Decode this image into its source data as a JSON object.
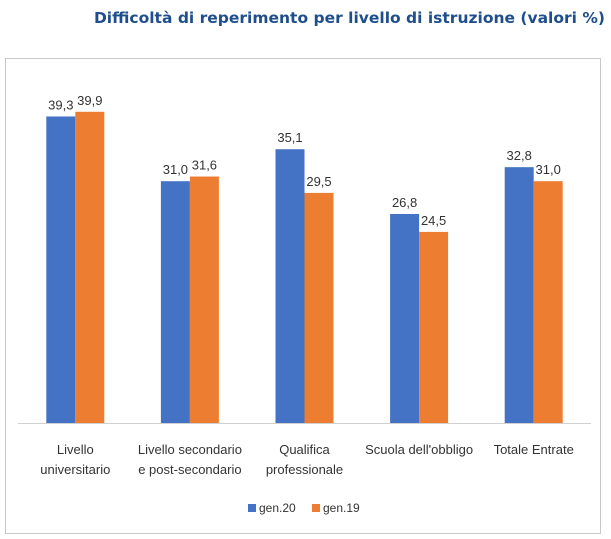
{
  "chart_data": {
    "type": "bar",
    "title": "Difficoltà di reperimento per livello di istruzione (valori %)",
    "categories": [
      [
        "Livello",
        "universitario"
      ],
      [
        "Livello secondario",
        "e post-secondario"
      ],
      [
        "Qualifica",
        "professionale"
      ],
      [
        "Scuola dell'obbligo"
      ],
      [
        "Totale Entrate"
      ]
    ],
    "series": [
      {
        "name": "gen.20",
        "color": "#4472c4",
        "values": [
          39.3,
          31.0,
          35.1,
          26.8,
          32.8
        ],
        "labels": [
          "39,3",
          "31,0",
          "35,1",
          "26,8",
          "32,8"
        ]
      },
      {
        "name": "gen.19",
        "color": "#ed7d31",
        "values": [
          39.9,
          31.6,
          29.5,
          24.5,
          31.0
        ],
        "labels": [
          "39,9",
          "31,6",
          "29,5",
          "24,5",
          "31,0"
        ]
      }
    ],
    "ylim": [
      0,
      45
    ],
    "grid": false,
    "legend": "bottom"
  }
}
